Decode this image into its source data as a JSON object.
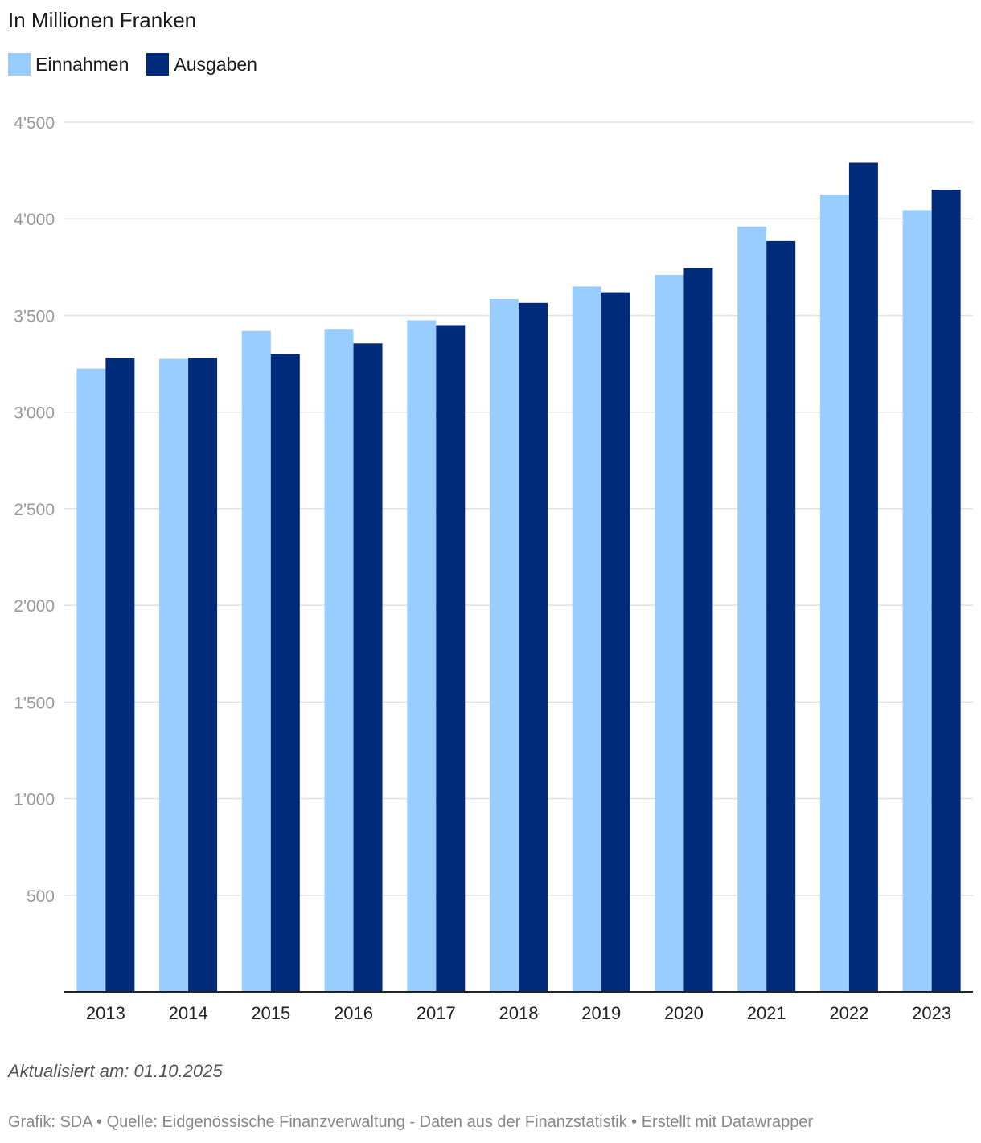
{
  "chart_data": {
    "type": "bar",
    "subtitle": "In Millionen Franken",
    "categories": [
      "2013",
      "2014",
      "2015",
      "2016",
      "2017",
      "2018",
      "2019",
      "2020",
      "2021",
      "2022",
      "2023"
    ],
    "series": [
      {
        "name": "Einnahmen",
        "color": "#99ccff",
        "values": [
          3225,
          3275,
          3420,
          3430,
          3475,
          3585,
          3650,
          3710,
          3960,
          4125,
          4045
        ]
      },
      {
        "name": "Ausgaben",
        "color": "#002b7a",
        "values": [
          3280,
          3280,
          3300,
          3355,
          3450,
          3565,
          3620,
          3745,
          3885,
          4290,
          4150
        ]
      }
    ],
    "ylim": [
      0,
      4500
    ],
    "yticks": [
      500,
      1000,
      1500,
      2000,
      2500,
      3000,
      3500,
      4000,
      4500
    ],
    "ytick_labels": [
      "500",
      "1'000",
      "1'500",
      "2'000",
      "2'500",
      "3'000",
      "3'500",
      "4'000",
      "4'500"
    ],
    "grid": true,
    "legend_position": "top-left"
  },
  "footer": {
    "updated": "Aktualisiert am: 01.10.2025",
    "source": "Grafik: SDA • Quelle: Eidgenössische Finanzverwaltung - Daten aus der Finanzstatistik • Erstellt mit Datawrapper"
  }
}
